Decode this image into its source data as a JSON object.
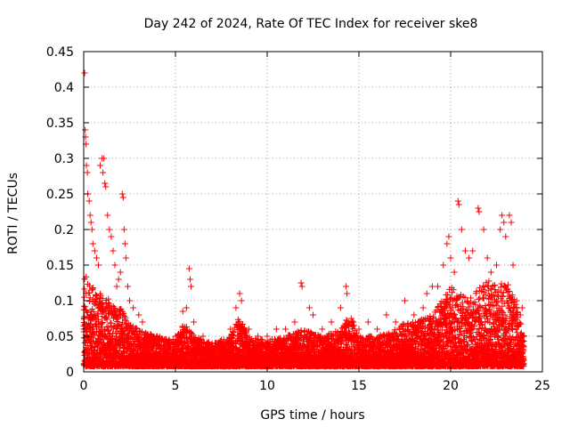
{
  "chart_data": {
    "type": "scatter",
    "title": "Day 242 of 2024, Rate Of TEC Index for receiver ske8",
    "xlabel": "GPS time / hours",
    "ylabel": "ROTI / TECUs",
    "xlim": [
      0,
      25
    ],
    "ylim": [
      0,
      0.45
    ],
    "xticks": [
      0,
      5,
      10,
      15,
      20,
      25
    ],
    "xtick_labels": [
      "0",
      "5",
      "10",
      "15",
      "20",
      "25"
    ],
    "yticks": [
      0,
      0.05,
      0.1,
      0.15,
      0.2,
      0.25,
      0.3,
      0.35,
      0.4,
      0.45
    ],
    "ytick_labels": [
      "0",
      "0.05",
      "0.1",
      "0.15",
      "0.2",
      "0.25",
      "0.3",
      "0.35",
      "0.4",
      "0.45"
    ],
    "grid": true,
    "marker": "+",
    "marker_color": "#ff0000",
    "series": [
      {
        "name": "ROTI",
        "points": [
          [
            0.05,
            0.42
          ],
          [
            0.08,
            0.34
          ],
          [
            0.1,
            0.33
          ],
          [
            0.12,
            0.32
          ],
          [
            0.15,
            0.29
          ],
          [
            0.2,
            0.28
          ],
          [
            0.22,
            0.25
          ],
          [
            0.3,
            0.24
          ],
          [
            0.35,
            0.22
          ],
          [
            0.4,
            0.21
          ],
          [
            0.45,
            0.2
          ],
          [
            0.5,
            0.18
          ],
          [
            0.6,
            0.17
          ],
          [
            0.7,
            0.16
          ],
          [
            0.8,
            0.15
          ],
          [
            0.9,
            0.29
          ],
          [
            1.0,
            0.3
          ],
          [
            1.05,
            0.28
          ],
          [
            1.1,
            0.3
          ],
          [
            1.15,
            0.265
          ],
          [
            1.2,
            0.26
          ],
          [
            1.3,
            0.22
          ],
          [
            1.4,
            0.2
          ],
          [
            1.5,
            0.19
          ],
          [
            1.6,
            0.17
          ],
          [
            1.7,
            0.15
          ],
          [
            1.8,
            0.12
          ],
          [
            1.9,
            0.13
          ],
          [
            2.0,
            0.14
          ],
          [
            2.1,
            0.25
          ],
          [
            2.15,
            0.245
          ],
          [
            2.2,
            0.2
          ],
          [
            2.25,
            0.18
          ],
          [
            2.3,
            0.16
          ],
          [
            2.4,
            0.12
          ],
          [
            2.5,
            0.1
          ],
          [
            2.7,
            0.09
          ],
          [
            3.0,
            0.08
          ],
          [
            3.2,
            0.07
          ],
          [
            3.5,
            0.05
          ],
          [
            4.0,
            0.05
          ],
          [
            4.5,
            0.045
          ],
          [
            5.0,
            0.05
          ],
          [
            5.4,
            0.085
          ],
          [
            5.6,
            0.09
          ],
          [
            5.75,
            0.145
          ],
          [
            5.8,
            0.13
          ],
          [
            5.85,
            0.12
          ],
          [
            6.0,
            0.07
          ],
          [
            6.5,
            0.05
          ],
          [
            7.0,
            0.04
          ],
          [
            7.5,
            0.045
          ],
          [
            8.0,
            0.06
          ],
          [
            8.3,
            0.09
          ],
          [
            8.5,
            0.11
          ],
          [
            8.6,
            0.1
          ],
          [
            9.0,
            0.06
          ],
          [
            9.5,
            0.05
          ],
          [
            10.0,
            0.05
          ],
          [
            10.5,
            0.06
          ],
          [
            11.0,
            0.06
          ],
          [
            11.5,
            0.07
          ],
          [
            11.85,
            0.125
          ],
          [
            11.9,
            0.12
          ],
          [
            12.3,
            0.09
          ],
          [
            12.5,
            0.08
          ],
          [
            13.0,
            0.06
          ],
          [
            13.5,
            0.07
          ],
          [
            14.0,
            0.09
          ],
          [
            14.3,
            0.12
          ],
          [
            14.35,
            0.11
          ],
          [
            14.7,
            0.07
          ],
          [
            15.0,
            0.06
          ],
          [
            15.5,
            0.07
          ],
          [
            16.0,
            0.06
          ],
          [
            16.5,
            0.08
          ],
          [
            17.0,
            0.07
          ],
          [
            17.5,
            0.1
          ],
          [
            18.0,
            0.08
          ],
          [
            18.5,
            0.09
          ],
          [
            18.7,
            0.11
          ],
          [
            19.0,
            0.12
          ],
          [
            19.3,
            0.12
          ],
          [
            19.6,
            0.15
          ],
          [
            19.8,
            0.18
          ],
          [
            19.9,
            0.19
          ],
          [
            20.0,
            0.16
          ],
          [
            20.2,
            0.14
          ],
          [
            20.4,
            0.24
          ],
          [
            20.45,
            0.235
          ],
          [
            20.6,
            0.2
          ],
          [
            20.8,
            0.17
          ],
          [
            21.0,
            0.16
          ],
          [
            21.2,
            0.17
          ],
          [
            21.5,
            0.23
          ],
          [
            21.55,
            0.225
          ],
          [
            21.8,
            0.2
          ],
          [
            22.0,
            0.16
          ],
          [
            22.2,
            0.14
          ],
          [
            22.5,
            0.15
          ],
          [
            22.7,
            0.2
          ],
          [
            22.8,
            0.22
          ],
          [
            22.9,
            0.21
          ],
          [
            23.0,
            0.19
          ],
          [
            23.2,
            0.22
          ],
          [
            23.3,
            0.21
          ],
          [
            23.4,
            0.15
          ],
          [
            23.6,
            0.1
          ],
          [
            23.8,
            0.08
          ],
          [
            23.9,
            0.09
          ],
          [
            24.0,
            0.05
          ]
        ]
      }
    ],
    "baseline_envelope": {
      "hours": [
        0,
        0.5,
        1,
        1.5,
        2,
        2.5,
        3,
        4,
        5,
        5.5,
        6,
        7,
        8,
        8.5,
        9,
        10,
        11,
        12,
        13,
        14,
        14.5,
        15,
        16,
        17,
        17.5,
        18,
        19,
        19.5,
        20,
        20.5,
        21,
        21.5,
        22,
        22.5,
        23,
        23.5,
        24
      ],
      "typical_max": [
        0.14,
        0.12,
        0.11,
        0.1,
        0.09,
        0.07,
        0.06,
        0.05,
        0.045,
        0.07,
        0.05,
        0.04,
        0.05,
        0.08,
        0.05,
        0.045,
        0.05,
        0.06,
        0.05,
        0.06,
        0.08,
        0.05,
        0.05,
        0.06,
        0.07,
        0.07,
        0.08,
        0.1,
        0.12,
        0.11,
        0.1,
        0.12,
        0.13,
        0.12,
        0.13,
        0.1,
        0.05
      ]
    }
  }
}
